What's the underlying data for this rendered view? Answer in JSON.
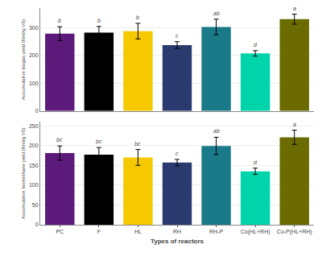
{
  "chart_data": [
    {
      "type": "bar",
      "categories": [
        "PC",
        "F",
        "HL",
        "RH",
        "RH-P",
        "Co(HL+RH)",
        "Co-P(HL+RH)"
      ],
      "values": [
        278,
        282,
        287,
        237,
        302,
        207,
        330
      ],
      "errors": [
        25,
        22,
        28,
        12,
        28,
        10,
        18
      ],
      "annotations": [
        "b",
        "b",
        "b",
        "c",
        "ab",
        "d",
        "a"
      ],
      "colors": [
        "#5c1a7a",
        "#000000",
        "#f5c800",
        "#2b3a6e",
        "#1a7a8a",
        "#00d4aa",
        "#6b6b00"
      ],
      "ylabel": "Accumulative biogas yield (Nml/g VS)",
      "ylim": [
        0,
        370
      ],
      "yticks": [
        0,
        100,
        200,
        300
      ],
      "grid": true,
      "tick_labels": "y"
    },
    {
      "type": "bar",
      "categories": [
        "PC",
        "F",
        "HL",
        "RH",
        "RH-P",
        "Co(HL+RH)",
        "Co-P(HL+RH)"
      ],
      "values": [
        181,
        177,
        170,
        157,
        199,
        135,
        221
      ],
      "errors": [
        18,
        18,
        20,
        8,
        22,
        8,
        18
      ],
      "annotations": [
        "bc",
        "bc",
        "bc",
        "c",
        "ab",
        "d",
        "a"
      ],
      "colors": [
        "#5c1a7a",
        "#000000",
        "#f5c800",
        "#2b3a6e",
        "#1a7a8a",
        "#00d4aa",
        "#6b6b00"
      ],
      "ylabel": "Accumulative biomethane yield (Nml/g VS)",
      "xlabel": "Types of reactors",
      "ylim": [
        0,
        260
      ],
      "yticks": [
        0,
        50,
        100,
        150,
        200,
        250
      ],
      "grid": true
    }
  ]
}
